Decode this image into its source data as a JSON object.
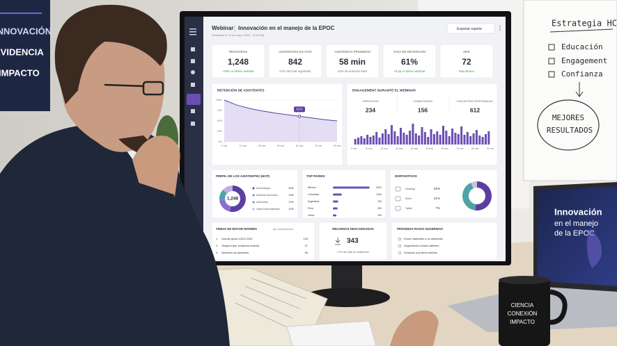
{
  "scene": {
    "wall_display": [
      "INNOVACIÓN",
      "EVIDENCIA",
      "IMPACTO"
    ],
    "whiteboard": {
      "title": "Estrategia HCP",
      "items": [
        "Educación",
        "Engagement",
        "Confianza"
      ],
      "circle": [
        "MEJORES",
        "RESULTADOS"
      ]
    },
    "laptop": [
      "Innovación",
      "en el manejo",
      "de la EPOC"
    ],
    "mug": [
      "CIENCIA",
      "CONEXIÓN",
      "IMPACTO"
    ]
  },
  "dashboard": {
    "header": {
      "title": "Webinar",
      "subtitle": "Innovación en el manejo de la EPOC",
      "date": "Realizado el 15 de mayo, 2024 · 11:00 AM",
      "button": "Exportar reporte"
    },
    "kpis": [
      {
        "label": "REGISTROS",
        "value": "1,248",
        "note": "+18% vs último webinar",
        "color": "#3a9a4b"
      },
      {
        "label": "ASISTENTES EN VIVO",
        "value": "842",
        "note": "67% del total registrado",
        "color": "#777777"
      },
      {
        "label": "ASISTENCIA PROMEDIO",
        "value": "58 min",
        "note": "62% de duración total",
        "color": "#777777"
      },
      {
        "label": "TASA DE RETENCIÓN",
        "value": "61%",
        "note": "+9 pp vs último webinar",
        "color": "#3a9a4b"
      },
      {
        "label": "NPS",
        "value": "72",
        "note": "Muy Bueno",
        "color": "#3a9a4b"
      }
    ],
    "retention": {
      "type": "line",
      "title": "RETENCIÓN DE ASISTENTES",
      "color": "#5b3fa0",
      "x": [
        0,
        10,
        20,
        30,
        40,
        50,
        60,
        70,
        80,
        90
      ],
      "values": [
        100,
        88,
        80,
        74,
        69,
        65,
        61,
        57,
        53,
        50
      ],
      "xlim": [
        0,
        90
      ],
      "ylim": [
        0,
        100
      ],
      "xticks": [
        {
          "value": 0,
          "label": "0 min"
        },
        {
          "value": 15,
          "label": "15 min"
        },
        {
          "value": 30,
          "label": "30 min"
        },
        {
          "value": 45,
          "label": "45 min"
        },
        {
          "value": 60,
          "label": "60 min"
        },
        {
          "value": 75,
          "label": "75 min"
        },
        {
          "value": 90,
          "label": "90 min"
        }
      ],
      "yticks": [
        {
          "value": 100,
          "label": "100%"
        },
        {
          "value": 75,
          "label": "75%"
        },
        {
          "value": 50,
          "label": "50%"
        },
        {
          "value": 25,
          "label": "25%"
        },
        {
          "value": 0,
          "label": "0%"
        }
      ],
      "marker": {
        "x": 60,
        "value": 61,
        "label": "61%"
      }
    },
    "engagement": {
      "type": "bar",
      "title": "ENGAGEMENT DURANTE EL WEBINAR",
      "color": "#6a4fb3",
      "stats": [
        {
          "label": "PREGUNTAS",
          "value": 234
        },
        {
          "label": "COMENTARIOS",
          "value": 156
        },
        {
          "label": "ENCUESTAS RESPONDIDAS",
          "value": 612
        }
      ],
      "values": [
        8,
        10,
        12,
        9,
        14,
        11,
        13,
        18,
        10,
        16,
        22,
        15,
        28,
        19,
        12,
        24,
        17,
        14,
        20,
        30,
        16,
        13,
        25,
        18,
        11,
        22,
        15,
        19,
        14,
        27,
        20,
        12,
        23,
        17,
        15,
        26,
        14,
        18,
        12,
        16,
        21,
        13,
        11,
        15,
        19
      ],
      "xlim": [
        0,
        90
      ],
      "xticks": [
        {
          "value": 0,
          "label": "0 min"
        },
        {
          "value": 10,
          "label": "10 min"
        },
        {
          "value": 20,
          "label": "20 min"
        },
        {
          "value": 30,
          "label": "30 min"
        },
        {
          "value": 40,
          "label": "40 min"
        },
        {
          "value": 50,
          "label": "50 min"
        },
        {
          "value": 60,
          "label": "60 min"
        },
        {
          "value": 70,
          "label": "70 min"
        },
        {
          "value": 80,
          "label": "80 min"
        },
        {
          "value": 90,
          "label": "90 min"
        }
      ]
    },
    "profile": {
      "type": "pie",
      "title": "PERFIL DE LOS ASISTENTES (HCP)",
      "center": "1,248",
      "categories": [
        "Neumólogos",
        "Médicos Generales",
        "Internistas",
        "Otras Especialidades"
      ],
      "values": [
        48,
        18,
        12,
        12
      ],
      "value_labels": [
        "48%",
        "18%",
        "12%",
        "12%"
      ],
      "colors": [
        "#5b3fa0",
        "#8a6fd0",
        "#4fa3a5",
        "#b9b0e0"
      ]
    },
    "countries": {
      "type": "bar",
      "title": "TOP PAÍSES",
      "color": "#6a4fb3",
      "categories": [
        "México",
        "Colombia",
        "Argentina",
        "Perú",
        "Otros"
      ],
      "values": [
        62,
        15,
        9,
        8,
        6
      ],
      "value_labels": [
        "62%",
        "15%",
        "9%",
        "8%",
        "6%"
      ]
    },
    "devices": {
      "type": "pie",
      "title": "DISPOSITIVOS",
      "categories": [
        "Desktop",
        "Móvil",
        "Tablet"
      ],
      "values": [
        52,
        41,
        7
      ],
      "value_labels": [
        "52%",
        "41%",
        "7%"
      ],
      "colors": [
        "#5b3fa0",
        "#4fa3a5",
        "#c9c3e0"
      ]
    },
    "topics": {
      "title": "TEMAS DE MAYOR INTERÉS",
      "subtitle": "(por interacciones)",
      "rows": [
        [
          "1.",
          "Nuevas guías GOLD 2024",
          128
        ],
        [
          "2.",
          "Terapia triple: evidencia reciente",
          97
        ],
        [
          "3.",
          "Selección de pacientes",
          65
        ]
      ]
    },
    "resources": {
      "title": "RECURSOS DESCARGADOS",
      "value": 343,
      "note": "27% del total de asistentes"
    },
    "next_steps": {
      "title": "PRÓXIMOS PASOS SUGERIDOS",
      "items": [
        "Enviar materiales a no asistentes",
        "Seguimiento a leads calientes",
        "Invitación a próximo webinar"
      ]
    }
  }
}
